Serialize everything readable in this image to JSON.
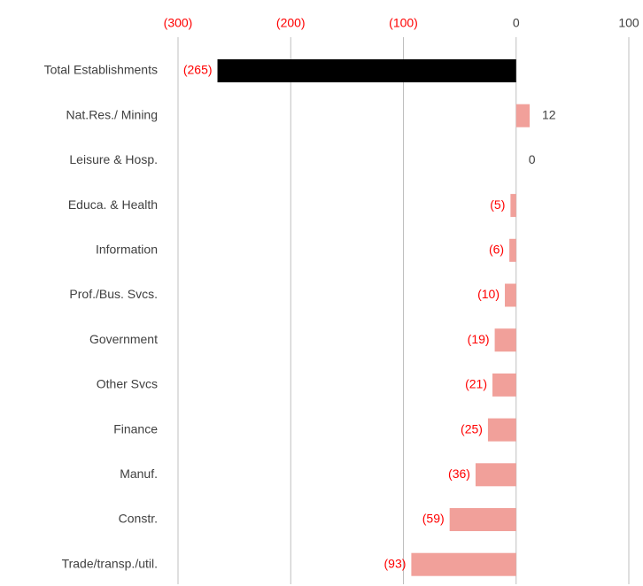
{
  "chart_data": {
    "type": "barh",
    "categories": [
      "Total Establishments",
      "Nat.Res./ Mining",
      "Leisure &  Hosp.",
      "Educa. & Health",
      "Information",
      "Prof./Bus. Svcs.",
      "Government",
      "Other Svcs",
      "Finance",
      "Manuf.",
      "Constr.",
      "Trade/transp./util."
    ],
    "values": [
      -265,
      12,
      0,
      -5,
      -6,
      -10,
      -19,
      -21,
      -25,
      -36,
      -59,
      -93
    ],
    "value_labels": [
      "(265)",
      "12",
      "0",
      "(5)",
      "(6)",
      "(10)",
      "(19)",
      "(21)",
      "(25)",
      "(36)",
      "(59)",
      "(93)"
    ],
    "colors": [
      "#000000",
      "#f1a09a",
      "#f1a09a",
      "#f1a09a",
      "#f1a09a",
      "#f1a09a",
      "#f1a09a",
      "#f1a09a",
      "#f1a09a",
      "#f1a09a",
      "#f1a09a",
      "#f1a09a"
    ],
    "negative_label_color": "#ff0000",
    "xlim": [
      -300,
      100
    ],
    "xticks": [
      {
        "value": -300,
        "label": "(300)"
      },
      {
        "value": -200,
        "label": "(200)"
      },
      {
        "value": -100,
        "label": "(100)"
      },
      0,
      100
    ],
    "grid": true
  }
}
